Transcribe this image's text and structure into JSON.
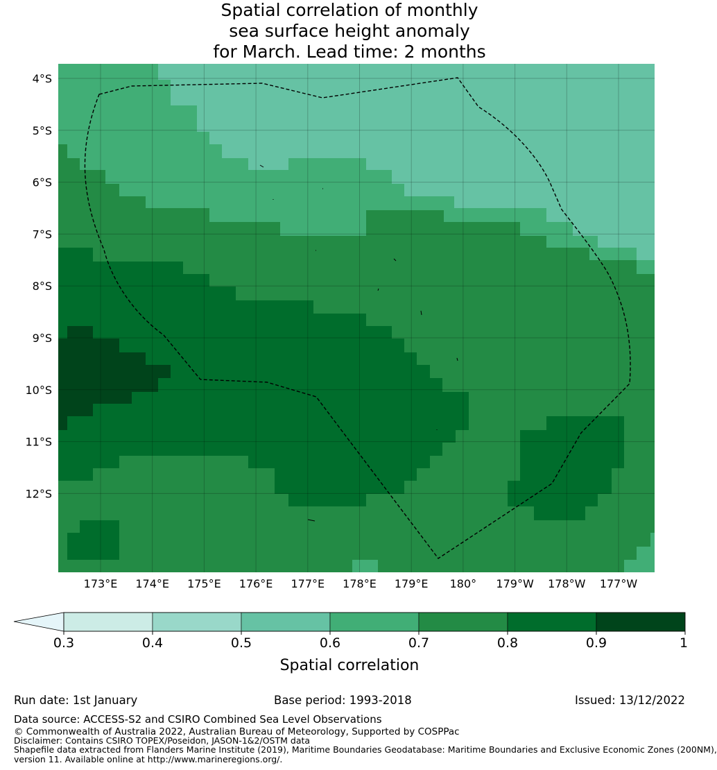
{
  "title_lines": [
    "Spatial correlation of monthly",
    "sea surface height anomaly",
    "for March. Lead time: 2 months"
  ],
  "map": {
    "lon_ticks": [
      "173°E",
      "174°E",
      "175°E",
      "176°E",
      "177°E",
      "178°E",
      "179°E",
      "180°",
      "179°W",
      "178°W",
      "177°W"
    ],
    "lat_ticks": [
      "4°S",
      "5°S",
      "6°S",
      "7°S",
      "8°S",
      "9°S",
      "10°S",
      "11°S",
      "12°S"
    ],
    "colors": {
      "0.3-0.4": "#ccece6",
      "0.4-0.5": "#99d8c9",
      "0.5-0.6": "#66c2a4",
      "0.6-0.7": "#41ae76",
      "0.7-0.8": "#238b45",
      "0.8-0.9": "#006d2c",
      "0.9-1": "#00441b",
      "under": "#e5f5f9"
    }
  },
  "colorbar": {
    "ticks": [
      "0.3",
      "0.4",
      "0.5",
      "0.6",
      "0.7",
      "0.8",
      "0.9",
      "1"
    ],
    "label": "Spatial correlation"
  },
  "footer": {
    "run_date": "Run date: 1st January",
    "base_period": "Base period: 1993-2018",
    "issued": "Issued: 13/12/2022",
    "data_source": "Data source: ACCESS-S2 and CSIRO Combined Sea Level Observations",
    "copyright": "© Commonwealth of Australia 2022, Australian Bureau of Meteorology, Supported by COSPPac",
    "disclaimer": "Disclaimer: Contains CSIRO TOPEX/Poseidon, JASON-1&2/OSTM data",
    "shapefile_1": "Shapefile data extracted from Flanders Marine Institute (2019), Maritime Boundaries Geodatabase: Maritime Boundaries and Exclusive Economic Zones (200NM),",
    "shapefile_2": "version 11. Available online at http://www.marineregions.org/."
  }
}
